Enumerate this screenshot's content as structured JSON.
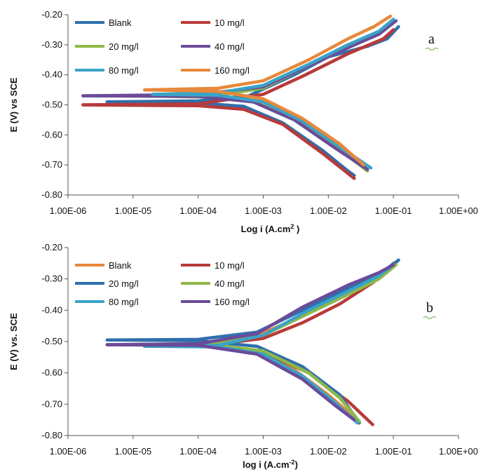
{
  "chart_data": [
    {
      "type": "line",
      "panel_label": "a",
      "xlabel": "Log i (A.cm",
      "xlabel_sup": "2",
      "xlabel_end": " )",
      "ylabel": "E (V) vs SCE",
      "x_scale": "log",
      "xlim": [
        1e-06,
        1
      ],
      "ylim": [
        -0.8,
        -0.2
      ],
      "x_ticks": [
        "1.00E-06",
        "1.00E-05",
        "1.00E-04",
        "1.00E-03",
        "1.00E-02",
        "1.00E-01",
        "1.00E+00"
      ],
      "y_ticks": [
        "-0.20",
        "-0.30",
        "-0.40",
        "-0.50",
        "-0.60",
        "-0.70",
        "-0.80"
      ],
      "grid": false,
      "legend": "top-left, 2 columns",
      "series": [
        {
          "name": "Blank",
          "color": "#2f6fad",
          "ecorr": -0.49,
          "icorr": 4e-06,
          "cathodic": [
            [
              4e-06,
              -0.49
            ],
            [
              0.0001,
              -0.494
            ],
            [
              0.0005,
              -0.505
            ],
            [
              0.002,
              -0.56
            ],
            [
              0.008,
              -0.65
            ],
            [
              0.02,
              -0.72
            ],
            [
              0.025,
              -0.735
            ]
          ],
          "anodic": [
            [
              4e-06,
              -0.49
            ],
            [
              0.0001,
              -0.487
            ],
            [
              0.0006,
              -0.47
            ],
            [
              0.003,
              -0.4
            ],
            [
              0.01,
              -0.34
            ],
            [
              0.04,
              -0.305
            ],
            [
              0.08,
              -0.28
            ],
            [
              0.12,
              -0.24
            ]
          ]
        },
        {
          "name": "10 mg/l",
          "color": "#b83a3a",
          "ecorr": -0.5,
          "icorr": 1.7e-06,
          "cathodic": [
            [
              1.7e-06,
              -0.5
            ],
            [
              0.0001,
              -0.503
            ],
            [
              0.0005,
              -0.515
            ],
            [
              0.002,
              -0.565
            ],
            [
              0.008,
              -0.66
            ],
            [
              0.025,
              -0.745
            ]
          ],
          "anodic": [
            [
              1.7e-06,
              -0.5
            ],
            [
              0.0001,
              -0.497
            ],
            [
              0.001,
              -0.465
            ],
            [
              0.004,
              -0.405
            ],
            [
              0.02,
              -0.33
            ],
            [
              0.07,
              -0.28
            ],
            [
              0.1,
              -0.25
            ]
          ]
        },
        {
          "name": "20 mg/l",
          "color": "#8fb84a",
          "ecorr": -0.47,
          "icorr": 1e-05,
          "cathodic": [
            [
              1e-05,
              -0.47
            ],
            [
              0.0002,
              -0.475
            ],
            [
              0.001,
              -0.495
            ],
            [
              0.004,
              -0.56
            ],
            [
              0.015,
              -0.65
            ],
            [
              0.04,
              -0.72
            ]
          ],
          "anodic": [
            [
              1e-05,
              -0.47
            ],
            [
              0.0002,
              -0.468
            ],
            [
              0.001,
              -0.445
            ],
            [
              0.004,
              -0.38
            ],
            [
              0.02,
              -0.31
            ],
            [
              0.06,
              -0.26
            ],
            [
              0.1,
              -0.225
            ]
          ]
        },
        {
          "name": "40 mg/l",
          "color": "#6b4b99",
          "ecorr": -0.47,
          "icorr": 1.7e-06,
          "cathodic": [
            [
              1.7e-06,
              -0.47
            ],
            [
              0.0001,
              -0.472
            ],
            [
              0.0007,
              -0.49
            ],
            [
              0.003,
              -0.55
            ],
            [
              0.012,
              -0.64
            ],
            [
              0.04,
              -0.715
            ]
          ],
          "anodic": [
            [
              1.7e-06,
              -0.47
            ],
            [
              0.0001,
              -0.466
            ],
            [
              0.001,
              -0.44
            ],
            [
              0.005,
              -0.37
            ],
            [
              0.02,
              -0.31
            ],
            [
              0.06,
              -0.265
            ],
            [
              0.11,
              -0.22
            ]
          ]
        },
        {
          "name": "80 mg/l",
          "color": "#3aa3c6",
          "ecorr": -0.465,
          "icorr": 2e-05,
          "cathodic": [
            [
              2e-05,
              -0.465
            ],
            [
              0.0002,
              -0.468
            ],
            [
              0.001,
              -0.49
            ],
            [
              0.004,
              -0.555
            ],
            [
              0.015,
              -0.64
            ],
            [
              0.045,
              -0.71
            ]
          ],
          "anodic": [
            [
              2e-05,
              -0.465
            ],
            [
              0.0002,
              -0.46
            ],
            [
              0.001,
              -0.435
            ],
            [
              0.005,
              -0.365
            ],
            [
              0.02,
              -0.3
            ],
            [
              0.06,
              -0.255
            ],
            [
              0.1,
              -0.215
            ]
          ]
        },
        {
          "name": "160 mg/l",
          "color": "#e8883a",
          "ecorr": -0.45,
          "icorr": 1.5e-05,
          "cathodic": [
            [
              1.5e-05,
              -0.45
            ],
            [
              0.0002,
              -0.455
            ],
            [
              0.001,
              -0.48
            ],
            [
              0.004,
              -0.545
            ],
            [
              0.015,
              -0.63
            ],
            [
              0.035,
              -0.7
            ]
          ],
          "anodic": [
            [
              1.5e-05,
              -0.45
            ],
            [
              0.0002,
              -0.445
            ],
            [
              0.001,
              -0.42
            ],
            [
              0.005,
              -0.35
            ],
            [
              0.02,
              -0.28
            ],
            [
              0.05,
              -0.24
            ],
            [
              0.09,
              -0.205
            ]
          ]
        }
      ]
    },
    {
      "type": "line",
      "panel_label": "b",
      "xlabel": "log i (A.cm",
      "xlabel_sup": "-2",
      "xlabel_end": ")",
      "ylabel": "E (V) vs. SCE",
      "x_scale": "log",
      "xlim": [
        1e-06,
        1
      ],
      "ylim": [
        -0.8,
        -0.2
      ],
      "x_ticks": [
        "1.00E-06",
        "1.00E-05",
        "1.00E-04",
        "1.00E-03",
        "1.00E-02",
        "1.00E-01",
        "1.00E+00"
      ],
      "y_ticks": [
        "-0.20",
        "-0.30",
        "-0.40",
        "-0.50",
        "-0.60",
        "-0.70",
        "-0.80"
      ],
      "grid": false,
      "legend": "top-left, 2 columns",
      "series": [
        {
          "name": "Blank",
          "color": "#e8883a",
          "ecorr": -0.51,
          "icorr": 4e-06,
          "cathodic": [
            [
              4e-06,
              -0.51
            ],
            [
              0.0001,
              -0.512
            ],
            [
              0.0008,
              -0.53
            ],
            [
              0.003,
              -0.59
            ],
            [
              0.01,
              -0.67
            ],
            [
              0.03,
              -0.755
            ]
          ],
          "anodic": [
            [
              4e-06,
              -0.51
            ],
            [
              0.0001,
              -0.507
            ],
            [
              0.0008,
              -0.48
            ],
            [
              0.004,
              -0.42
            ],
            [
              0.02,
              -0.34
            ],
            [
              0.08,
              -0.27
            ],
            [
              0.1,
              -0.25
            ]
          ]
        },
        {
          "name": "10 mg/l",
          "color": "#b83a3a",
          "ecorr": -0.51,
          "icorr": 1.5e-05,
          "cathodic": [
            [
              1.5e-05,
              -0.51
            ],
            [
              0.0002,
              -0.512
            ],
            [
              0.001,
              -0.535
            ],
            [
              0.005,
              -0.6
            ],
            [
              0.02,
              -0.69
            ],
            [
              0.048,
              -0.765
            ]
          ],
          "anodic": [
            [
              1.5e-05,
              -0.51
            ],
            [
              0.0002,
              -0.508
            ],
            [
              0.001,
              -0.49
            ],
            [
              0.004,
              -0.44
            ],
            [
              0.015,
              -0.38
            ],
            [
              0.05,
              -0.31
            ],
            [
              0.12,
              -0.24
            ]
          ]
        },
        {
          "name": "20 mg/l",
          "color": "#2f6fad",
          "ecorr": -0.495,
          "icorr": 4e-06,
          "cathodic": [
            [
              4e-06,
              -0.495
            ],
            [
              0.0001,
              -0.497
            ],
            [
              0.0008,
              -0.515
            ],
            [
              0.004,
              -0.58
            ],
            [
              0.015,
              -0.67
            ],
            [
              0.03,
              -0.76
            ]
          ],
          "anodic": [
            [
              4e-06,
              -0.495
            ],
            [
              0.0001,
              -0.493
            ],
            [
              0.0008,
              -0.47
            ],
            [
              0.004,
              -0.4
            ],
            [
              0.02,
              -0.33
            ],
            [
              0.06,
              -0.285
            ],
            [
              0.12,
              -0.24
            ]
          ]
        },
        {
          "name": "40 mg/l",
          "color": "#8fb84a",
          "ecorr": -0.51,
          "icorr": 1e-05,
          "cathodic": [
            [
              1e-05,
              -0.51
            ],
            [
              0.0002,
              -0.512
            ],
            [
              0.001,
              -0.53
            ],
            [
              0.005,
              -0.6
            ],
            [
              0.015,
              -0.68
            ],
            [
              0.03,
              -0.755
            ]
          ],
          "anodic": [
            [
              1e-05,
              -0.51
            ],
            [
              0.0002,
              -0.507
            ],
            [
              0.001,
              -0.48
            ],
            [
              0.005,
              -0.41
            ],
            [
              0.02,
              -0.35
            ],
            [
              0.06,
              -0.3
            ],
            [
              0.11,
              -0.255
            ]
          ]
        },
        {
          "name": "80 mg/l",
          "color": "#3aa3c6",
          "ecorr": -0.515,
          "icorr": 1.5e-05,
          "cathodic": [
            [
              1.5e-05,
              -0.515
            ],
            [
              0.0002,
              -0.517
            ],
            [
              0.001,
              -0.54
            ],
            [
              0.004,
              -0.61
            ],
            [
              0.012,
              -0.69
            ],
            [
              0.028,
              -0.76
            ]
          ],
          "anodic": [
            [
              1.5e-05,
              -0.515
            ],
            [
              0.0002,
              -0.512
            ],
            [
              0.001,
              -0.48
            ],
            [
              0.005,
              -0.4
            ],
            [
              0.02,
              -0.34
            ],
            [
              0.06,
              -0.29
            ],
            [
              0.1,
              -0.255
            ]
          ]
        },
        {
          "name": "160 mg/l",
          "color": "#6b4b99",
          "ecorr": -0.51,
          "icorr": 4e-06,
          "cathodic": [
            [
              4e-06,
              -0.51
            ],
            [
              0.0001,
              -0.512
            ],
            [
              0.0008,
              -0.54
            ],
            [
              0.004,
              -0.62
            ],
            [
              0.012,
              -0.7
            ],
            [
              0.025,
              -0.75
            ]
          ],
          "anodic": [
            [
              4e-06,
              -0.51
            ],
            [
              0.0001,
              -0.507
            ],
            [
              0.0008,
              -0.475
            ],
            [
              0.004,
              -0.39
            ],
            [
              0.02,
              -0.32
            ],
            [
              0.06,
              -0.28
            ],
            [
              0.1,
              -0.255
            ]
          ]
        }
      ]
    }
  ]
}
